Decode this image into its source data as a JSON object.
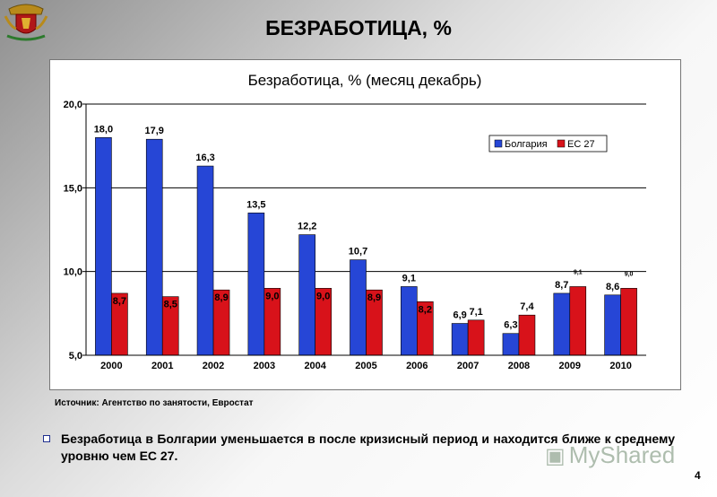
{
  "slide": {
    "title": "БЕЗРАБОТИЦА, %",
    "source": "Источник: Агентство по занятости, Евростат",
    "bullet": "Безработица в Болгарии уменьшается в после кризисный период и находится ближе к среднему уровню чем ЕС 27.",
    "page_number": "4",
    "watermark_text": "MyShared"
  },
  "colors": {
    "bulgaria": "#2646d6",
    "eu27": "#d8121a",
    "plot_background": "#ffffff",
    "gridline": "#000000"
  },
  "chart_data": {
    "type": "bar",
    "title": "Безработица, % (месяц декабрь)",
    "categories": [
      "2000",
      "2001",
      "2002",
      "2003",
      "2004",
      "2005",
      "2006",
      "2007",
      "2008",
      "2009",
      "2010"
    ],
    "series": [
      {
        "name": "Болгария",
        "values": [
          18.0,
          17.9,
          16.3,
          13.5,
          12.2,
          10.7,
          9.1,
          6.9,
          6.3,
          8.7,
          8.6
        ],
        "labels": [
          "18,0",
          "17,9",
          "16,3",
          "13,5",
          "12,2",
          "10,7",
          "9,1",
          "6,9",
          "6,3",
          "8,7",
          "8,6"
        ]
      },
      {
        "name": "ЕС 27",
        "values": [
          8.7,
          8.5,
          8.9,
          9.0,
          9.0,
          8.9,
          8.2,
          7.1,
          7.4,
          9.1,
          9.0
        ],
        "labels": [
          "8,7",
          "8,5",
          "8,9",
          "9,0",
          "9,0",
          "8,9",
          "8,2",
          "7,1",
          "7,4",
          "9,1",
          "9,0"
        ]
      }
    ],
    "ylim": [
      5.0,
      20.0
    ],
    "yticks": [
      5.0,
      10.0,
      15.0,
      20.0
    ],
    "ytick_labels": [
      "5,0",
      "10,0",
      "15,0",
      "20,0"
    ],
    "gridlines": true,
    "legend_position": "top-right",
    "xlabel": "",
    "ylabel": ""
  }
}
